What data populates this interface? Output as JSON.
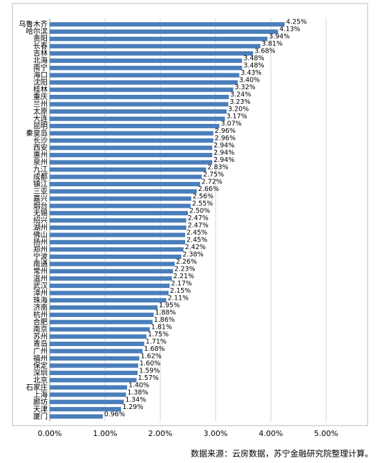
{
  "chart_data": {
    "type": "bar",
    "orientation": "horizontal",
    "categories": [
      "乌鲁木齐",
      "哈尔滨",
      "贵阳",
      "长春",
      "吉林",
      "北海",
      "南宁",
      "海口",
      "沈阳",
      "桂林",
      "重庆",
      "兰州",
      "太原",
      "大连",
      "昆明",
      "秦皇岛",
      "长沙",
      "西安",
      "惠州",
      "泉州",
      "九江",
      "成都",
      "镇江",
      "三亚",
      "嘉兴",
      "烟台",
      "无锡",
      "绍兴",
      "湖州",
      "佛山",
      "扬州",
      "郑州",
      "宁波",
      "南通",
      "常州",
      "温州",
      "武汉",
      "漳州",
      "珠海",
      "济南",
      "杭州",
      "合肥",
      "南京",
      "苏州",
      "青岛",
      "广州",
      "福州",
      "保定",
      "深圳",
      "北京",
      "石家庄",
      "上海",
      "廊坊",
      "天津",
      "厦门"
    ],
    "values": [
      4.25,
      4.13,
      3.94,
      3.81,
      3.68,
      3.48,
      3.48,
      3.43,
      3.4,
      3.32,
      3.24,
      3.23,
      3.2,
      3.17,
      3.07,
      2.96,
      2.96,
      2.94,
      2.94,
      2.94,
      2.83,
      2.75,
      2.72,
      2.66,
      2.56,
      2.55,
      2.5,
      2.47,
      2.47,
      2.45,
      2.45,
      2.42,
      2.38,
      2.26,
      2.23,
      2.21,
      2.17,
      2.15,
      2.11,
      1.95,
      1.88,
      1.86,
      1.81,
      1.75,
      1.71,
      1.68,
      1.62,
      1.6,
      1.59,
      1.57,
      1.4,
      1.38,
      1.34,
      1.29,
      0.96
    ],
    "value_labels": [
      "4.25%",
      "4.13%",
      "3.94%",
      "3.81%",
      "3.68%",
      "3.48%",
      "3.48%",
      "3.43%",
      "3.40%",
      "3.32%",
      "3.24%",
      "3.23%",
      "3.20%",
      "3.17%",
      "3.07%",
      "2.96%",
      "2.96%",
      "2.94%",
      "2.94%",
      "2.94%",
      "2.83%",
      "2.75%",
      "2.72%",
      "2.66%",
      "2.56%",
      "2.55%",
      "2.50%",
      "2.47%",
      "2.47%",
      "2.45%",
      "2.45%",
      "2.42%",
      "2.38%",
      "2.26%",
      "2.23%",
      "2.21%",
      "2.17%",
      "2.15%",
      "2.11%",
      "1.95%",
      "1.88%",
      "1.86%",
      "1.81%",
      "1.75%",
      "1.71%",
      "1.68%",
      "1.62%",
      "1.60%",
      "1.59%",
      "1.57%",
      "1.40%",
      "1.38%",
      "1.34%",
      "1.29%",
      "0.96%"
    ],
    "color": "#4a7ebb",
    "xlim": [
      0,
      5
    ],
    "xticks": [
      {
        "value": 0,
        "label": "0.00%"
      },
      {
        "value": 1,
        "label": "1.00%"
      },
      {
        "value": 2,
        "label": "2.00%"
      },
      {
        "value": 3,
        "label": "3.00%"
      },
      {
        "value": 4,
        "label": "4.00%"
      },
      {
        "value": 5,
        "label": "5.00%"
      }
    ],
    "grid": true
  },
  "source": "数据来源：云房数据，苏宁金融研究院整理计算。"
}
